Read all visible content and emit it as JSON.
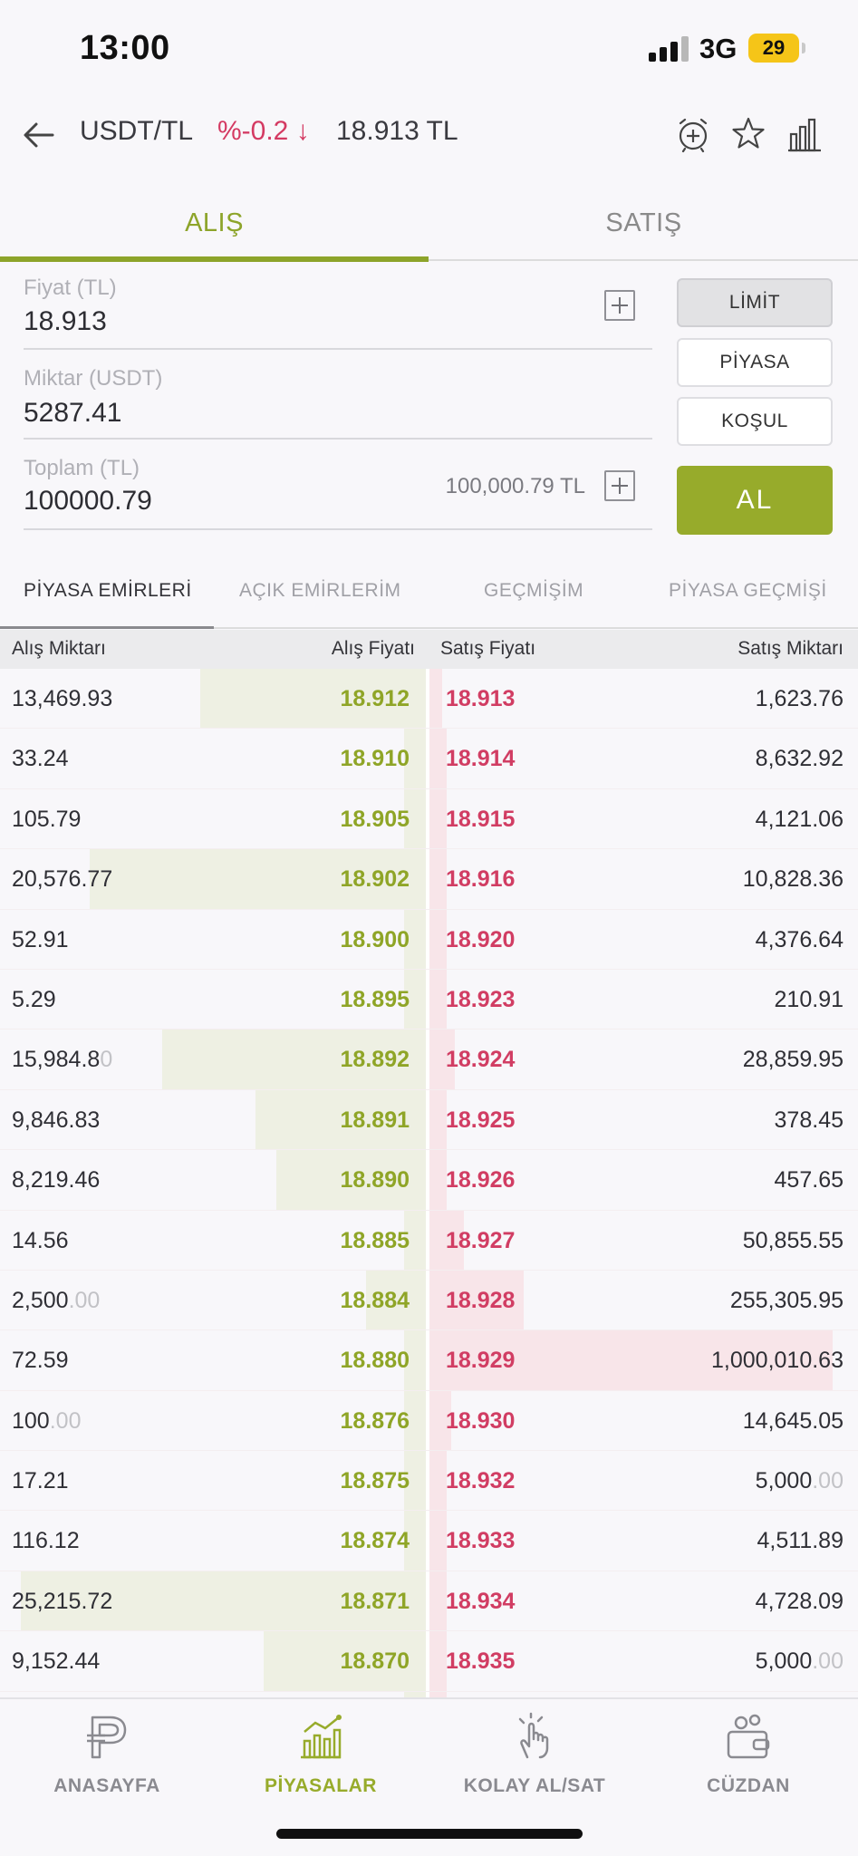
{
  "status_bar": {
    "time": "13:00",
    "network": "3G",
    "battery": "29"
  },
  "header": {
    "pair": "USDT/TL",
    "change": "%-0.2 ↓",
    "price": "18.913 TL",
    "icons": [
      "back-arrow-icon",
      "alarm-clock-icon",
      "star-icon",
      "chart-icon"
    ]
  },
  "tabs": {
    "buy": "ALIŞ",
    "sell": "SATIŞ",
    "active": "buy"
  },
  "form": {
    "price": {
      "label": "Fiyat (TL)",
      "value": "18.913"
    },
    "amount": {
      "label": "Miktar (USDT)",
      "value": "5287.41"
    },
    "total": {
      "label": "Toplam (TL)",
      "value": "100000.79",
      "hint": "100,000.79 TL"
    },
    "order_types": [
      "LİMİT",
      "PİYASA",
      "KOŞUL"
    ],
    "selected_type": "LİMİT",
    "submit_label": "AL"
  },
  "sub_tabs": [
    "PİYASA EMİRLERİ",
    "AÇIK EMİRLERİM",
    "GEÇMİŞİM",
    "PİYASA GEÇMİŞİ"
  ],
  "order_book": {
    "headers": {
      "bid_qty": "Alış Miktarı",
      "bid_price": "Alış Fiyatı",
      "ask_price": "Satış Fiyatı",
      "ask_qty": "Satış Miktarı"
    },
    "rows": [
      {
        "bid_qty": "13,469.93",
        "bid_qty_fade": "",
        "bid_price": "18.912",
        "ask_price": "18.913",
        "ask_qty": "1,623.76",
        "ask_qty_fade": "",
        "bid_fill": 0.53,
        "ask_fill": 0.03
      },
      {
        "bid_qty": "33.24",
        "bid_qty_fade": "",
        "bid_price": "18.910",
        "ask_price": "18.914",
        "ask_qty": "8,632.92",
        "ask_qty_fade": "",
        "bid_fill": 0.05,
        "ask_fill": 0.04
      },
      {
        "bid_qty": "105.79",
        "bid_qty_fade": "",
        "bid_price": "18.905",
        "ask_price": "18.915",
        "ask_qty": "4,121.06",
        "ask_qty_fade": "",
        "bid_fill": 0.05,
        "ask_fill": 0.04
      },
      {
        "bid_qty": "20,576.77",
        "bid_qty_fade": "",
        "bid_price": "18.902",
        "ask_price": "18.916",
        "ask_qty": "10,828.36",
        "ask_qty_fade": "",
        "bid_fill": 0.79,
        "ask_fill": 0.04
      },
      {
        "bid_qty": "52.91",
        "bid_qty_fade": "",
        "bid_price": "18.900",
        "ask_price": "18.920",
        "ask_qty": "4,376.64",
        "ask_qty_fade": "",
        "bid_fill": 0.05,
        "ask_fill": 0.04
      },
      {
        "bid_qty": "5.29",
        "bid_qty_fade": "",
        "bid_price": "18.895",
        "ask_price": "18.923",
        "ask_qty": "210.91",
        "ask_qty_fade": "",
        "bid_fill": 0.05,
        "ask_fill": 0.04
      },
      {
        "bid_qty": "15,984.8",
        "bid_qty_fade": "0",
        "bid_price": "18.892",
        "ask_price": "18.924",
        "ask_qty": "28,859.95",
        "ask_qty_fade": "",
        "bid_fill": 0.62,
        "ask_fill": 0.06
      },
      {
        "bid_qty": "9,846.83",
        "bid_qty_fade": "",
        "bid_price": "18.891",
        "ask_price": "18.925",
        "ask_qty": "378.45",
        "ask_qty_fade": "",
        "bid_fill": 0.4,
        "ask_fill": 0.04
      },
      {
        "bid_qty": "8,219.46",
        "bid_qty_fade": "",
        "bid_price": "18.890",
        "ask_price": "18.926",
        "ask_qty": "457.65",
        "ask_qty_fade": "",
        "bid_fill": 0.35,
        "ask_fill": 0.04
      },
      {
        "bid_qty": "14.56",
        "bid_qty_fade": "",
        "bid_price": "18.885",
        "ask_price": "18.927",
        "ask_qty": "50,855.55",
        "ask_qty_fade": "",
        "bid_fill": 0.05,
        "ask_fill": 0.08
      },
      {
        "bid_qty": "2,500",
        "bid_qty_fade": ".00",
        "bid_price": "18.884",
        "ask_price": "18.928",
        "ask_qty": "255,305.95",
        "ask_qty_fade": "",
        "bid_fill": 0.14,
        "ask_fill": 0.22
      },
      {
        "bid_qty": "72.59",
        "bid_qty_fade": "",
        "bid_price": "18.880",
        "ask_price": "18.929",
        "ask_qty": "1,000,010.63",
        "ask_qty_fade": "",
        "bid_fill": 0.05,
        "ask_fill": 0.94
      },
      {
        "bid_qty": "100",
        "bid_qty_fade": ".00",
        "bid_price": "18.876",
        "ask_price": "18.930",
        "ask_qty": "14,645.05",
        "ask_qty_fade": "",
        "bid_fill": 0.05,
        "ask_fill": 0.05
      },
      {
        "bid_qty": "17.21",
        "bid_qty_fade": "",
        "bid_price": "18.875",
        "ask_price": "18.932",
        "ask_qty": "5,000",
        "ask_qty_fade": ".00",
        "bid_fill": 0.05,
        "ask_fill": 0.04
      },
      {
        "bid_qty": "116.12",
        "bid_qty_fade": "",
        "bid_price": "18.874",
        "ask_price": "18.933",
        "ask_qty": "4,511.89",
        "ask_qty_fade": "",
        "bid_fill": 0.05,
        "ask_fill": 0.04
      },
      {
        "bid_qty": "25,215.72",
        "bid_qty_fade": "",
        "bid_price": "18.871",
        "ask_price": "18.934",
        "ask_qty": "4,728.09",
        "ask_qty_fade": "",
        "bid_fill": 0.95,
        "ask_fill": 0.04
      },
      {
        "bid_qty": "9,152.44",
        "bid_qty_fade": "",
        "bid_price": "18.870",
        "ask_price": "18.935",
        "ask_qty": "5,000",
        "ask_qty_fade": ".00",
        "bid_fill": 0.38,
        "ask_fill": 0.04
      },
      {
        "bid_qty": "",
        "bid_qty_fade": "",
        "bid_price": "",
        "ask_price": "",
        "ask_qty": "",
        "ask_qty_fade": "",
        "bid_fill": 0.05,
        "ask_fill": 0.04
      }
    ]
  },
  "bottom_nav": [
    {
      "label": "ANASAYFA",
      "icon": "home-logo-icon",
      "active": false
    },
    {
      "label": "PİYASALAR",
      "icon": "markets-chart-icon",
      "active": true
    },
    {
      "label": "KOLAY AL/SAT",
      "icon": "hand-tap-icon",
      "active": false
    },
    {
      "label": "CÜZDAN",
      "icon": "wallet-icon",
      "active": false
    }
  ],
  "colors": {
    "accent": "#97ab2b",
    "buy": "#8fa527",
    "sell": "#d13d63"
  }
}
